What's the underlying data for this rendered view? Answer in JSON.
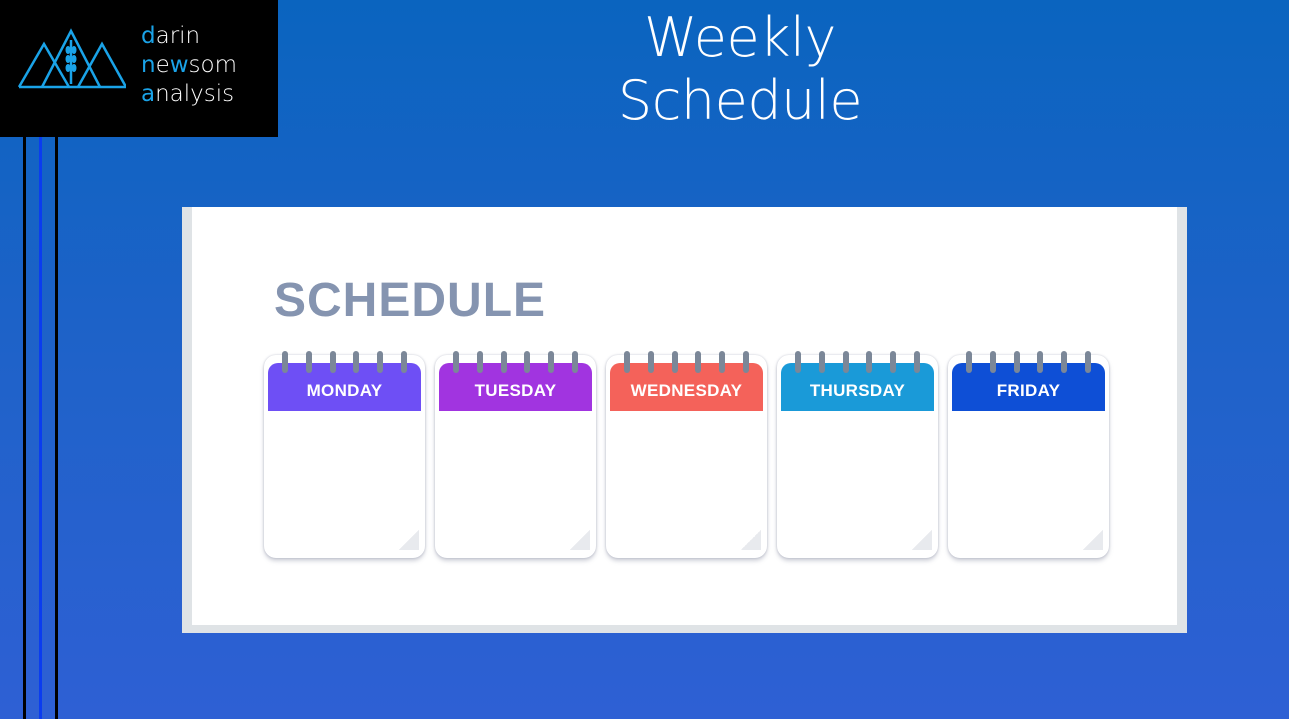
{
  "logo": {
    "line1_accent": "d",
    "line1_rest": "arin",
    "line2_accent": "n",
    "line2_mid": "e",
    "line2_accent2": "w",
    "line2_rest": "som",
    "line3_accent": "a",
    "line3_rest": "nalysis"
  },
  "title": "Weekly Schedule",
  "schedule": {
    "heading": "SCHEDULE",
    "days": [
      {
        "label": "MONDAY",
        "color": "#6e4ff5"
      },
      {
        "label": "TUESDAY",
        "color": "#a134e0"
      },
      {
        "label": "WEDNESDAY",
        "color": "#f4625a"
      },
      {
        "label": "THURSDAY",
        "color": "#1a9ad8"
      },
      {
        "label": "FRIDAY",
        "color": "#0e4fd6"
      }
    ]
  },
  "colors": {
    "accent": "#1aa3e8",
    "background": "#1f62c9"
  }
}
